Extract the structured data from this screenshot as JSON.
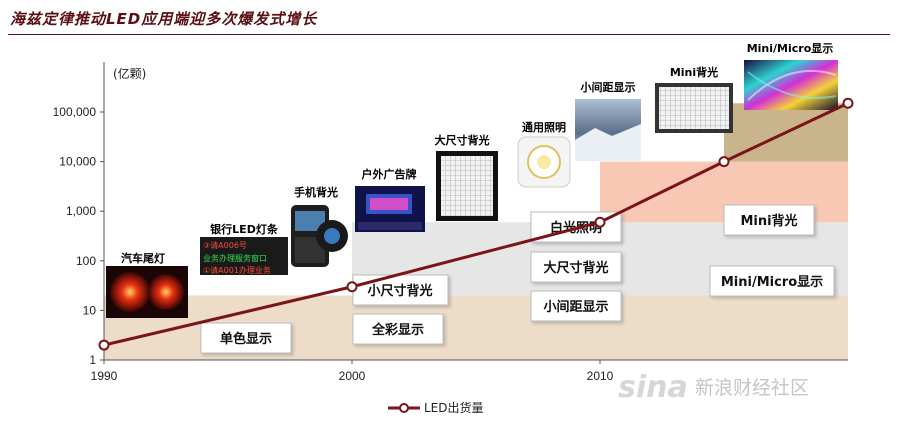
{
  "title": "海兹定律推动LED应用端迎多次爆发式增长",
  "chart_data": {
    "type": "line",
    "y_unit_label": "(亿颗)",
    "y_scale": "log",
    "ylim": [
      1,
      100000
    ],
    "y_ticks": [
      1,
      10,
      100,
      1000,
      10000,
      100000
    ],
    "y_tick_labels": [
      "1",
      "10",
      "100",
      "1,000",
      "10,000",
      "100,000"
    ],
    "xlim": [
      1990,
      2020
    ],
    "x_ticks": [
      1990,
      2000,
      2010
    ],
    "x_tick_labels": [
      "1990",
      "2000",
      "2010"
    ],
    "series": [
      {
        "name": "LED出货量",
        "color": "#7a1418",
        "points": [
          [
            1990,
            2
          ],
          [
            2000,
            30
          ],
          [
            2010,
            600
          ],
          [
            2015,
            10000
          ],
          [
            2020,
            150000
          ]
        ]
      }
    ],
    "bands": [
      {
        "y_range": [
          1,
          20
        ],
        "x_start": 1990,
        "color": "#ecdcc8"
      },
      {
        "y_range": [
          20,
          600
        ],
        "x_start": 2000,
        "color": "#e6e6e6"
      },
      {
        "y_range": [
          600,
          10000
        ],
        "x_start": 2010,
        "color": "#f8c8b4"
      },
      {
        "y_range": [
          10000,
          150000
        ],
        "x_start": 2015,
        "color": "#c9b48c"
      }
    ],
    "segment_labels": [
      "单色显示",
      "小尺寸背光",
      "全彩显示",
      "白光照明",
      "大尺寸背光",
      "小间距显示",
      "Mini背光",
      "Mini/Micro显示"
    ],
    "application_labels": [
      "汽车尾灯",
      "银行LED灯条",
      "手机背光",
      "户外广告牌",
      "大尺寸背光",
      "通用照明",
      "小间距显示",
      "Mini背光",
      "Mini/Micro显示"
    ],
    "bank_sign_text": [
      "③请A006号",
      "业务办理服务窗口",
      "①请A001办理业务"
    ],
    "legend": {
      "position": "bottom",
      "label": "LED出货量"
    }
  },
  "watermark": {
    "logo": "sina",
    "text": "新浪财经社区"
  }
}
